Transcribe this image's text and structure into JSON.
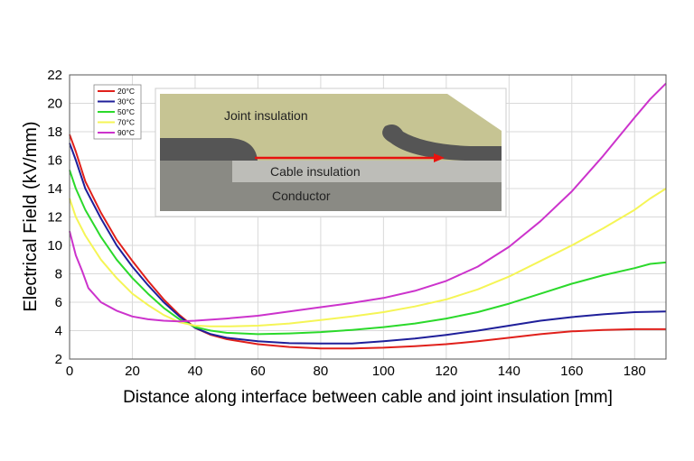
{
  "chart_data": {
    "type": "line",
    "title": "",
    "xlabel": "Distance along interface between cable and joint insulation [mm]",
    "ylabel": "Electrical Field (kV/mm)",
    "xlim": [
      0,
      190
    ],
    "ylim": [
      2,
      22
    ],
    "xticks": [
      "0",
      "20",
      "40",
      "60",
      "80",
      "100",
      "120",
      "140",
      "160",
      "180"
    ],
    "yticks": [
      "2",
      "4",
      "6",
      "8",
      "10",
      "12",
      "14",
      "16",
      "18",
      "20",
      "22"
    ],
    "grid": true,
    "legend_position": "top-left",
    "series": [
      {
        "name": "20°C",
        "color": "#e0201b",
        "points": [
          [
            0,
            17.8
          ],
          [
            2,
            16.6
          ],
          [
            5,
            14.5
          ],
          [
            10,
            12.3
          ],
          [
            15,
            10.4
          ],
          [
            20,
            8.9
          ],
          [
            25,
            7.5
          ],
          [
            30,
            6.2
          ],
          [
            35,
            5.1
          ],
          [
            40,
            4.2
          ],
          [
            45,
            3.7
          ],
          [
            50,
            3.4
          ],
          [
            60,
            3.05
          ],
          [
            70,
            2.85
          ],
          [
            80,
            2.75
          ],
          [
            90,
            2.75
          ],
          [
            100,
            2.8
          ],
          [
            110,
            2.9
          ],
          [
            120,
            3.05
          ],
          [
            130,
            3.25
          ],
          [
            140,
            3.5
          ],
          [
            150,
            3.75
          ],
          [
            160,
            3.95
          ],
          [
            170,
            4.05
          ],
          [
            180,
            4.1
          ],
          [
            190,
            4.1
          ]
        ]
      },
      {
        "name": "30°C",
        "color": "#1f1f9a",
        "points": [
          [
            0,
            17.2
          ],
          [
            2,
            16.0
          ],
          [
            5,
            14.0
          ],
          [
            10,
            11.9
          ],
          [
            15,
            10.0
          ],
          [
            20,
            8.5
          ],
          [
            25,
            7.2
          ],
          [
            30,
            6.0
          ],
          [
            35,
            5.0
          ],
          [
            40,
            4.2
          ],
          [
            45,
            3.75
          ],
          [
            50,
            3.5
          ],
          [
            60,
            3.25
          ],
          [
            70,
            3.12
          ],
          [
            80,
            3.1
          ],
          [
            90,
            3.1
          ],
          [
            100,
            3.25
          ],
          [
            110,
            3.45
          ],
          [
            120,
            3.7
          ],
          [
            130,
            4.0
          ],
          [
            140,
            4.35
          ],
          [
            150,
            4.7
          ],
          [
            160,
            4.95
          ],
          [
            170,
            5.15
          ],
          [
            180,
            5.3
          ],
          [
            190,
            5.35
          ]
        ]
      },
      {
        "name": "50°C",
        "color": "#2bd92b",
        "points": [
          [
            0,
            15.3
          ],
          [
            2,
            14.0
          ],
          [
            5,
            12.5
          ],
          [
            10,
            10.6
          ],
          [
            15,
            9.0
          ],
          [
            20,
            7.7
          ],
          [
            25,
            6.6
          ],
          [
            30,
            5.6
          ],
          [
            35,
            4.8
          ],
          [
            40,
            4.25
          ],
          [
            45,
            4.0
          ],
          [
            50,
            3.85
          ],
          [
            60,
            3.75
          ],
          [
            70,
            3.8
          ],
          [
            80,
            3.9
          ],
          [
            90,
            4.05
          ],
          [
            100,
            4.25
          ],
          [
            110,
            4.5
          ],
          [
            120,
            4.85
          ],
          [
            130,
            5.3
          ],
          [
            140,
            5.9
          ],
          [
            150,
            6.6
          ],
          [
            160,
            7.3
          ],
          [
            170,
            7.9
          ],
          [
            180,
            8.4
          ],
          [
            185,
            8.7
          ],
          [
            190,
            8.8
          ]
        ]
      },
      {
        "name": "70°C",
        "color": "#f5f556",
        "points": [
          [
            0,
            13.3
          ],
          [
            2,
            12.0
          ],
          [
            5,
            10.7
          ],
          [
            10,
            9.0
          ],
          [
            15,
            7.7
          ],
          [
            20,
            6.6
          ],
          [
            25,
            5.8
          ],
          [
            30,
            5.1
          ],
          [
            35,
            4.6
          ],
          [
            40,
            4.35
          ],
          [
            45,
            4.3
          ],
          [
            50,
            4.3
          ],
          [
            60,
            4.35
          ],
          [
            70,
            4.5
          ],
          [
            80,
            4.75
          ],
          [
            90,
            5.0
          ],
          [
            100,
            5.3
          ],
          [
            110,
            5.7
          ],
          [
            120,
            6.2
          ],
          [
            130,
            6.9
          ],
          [
            140,
            7.8
          ],
          [
            150,
            8.9
          ],
          [
            160,
            10.0
          ],
          [
            170,
            11.2
          ],
          [
            180,
            12.5
          ],
          [
            185,
            13.3
          ],
          [
            190,
            14.0
          ]
        ]
      },
      {
        "name": "90°C",
        "color": "#cc33cc",
        "points": [
          [
            0,
            11.0
          ],
          [
            2,
            9.3
          ],
          [
            4,
            8.2
          ],
          [
            6,
            7.0
          ],
          [
            10,
            6.0
          ],
          [
            15,
            5.4
          ],
          [
            20,
            5.0
          ],
          [
            25,
            4.8
          ],
          [
            30,
            4.7
          ],
          [
            35,
            4.65
          ],
          [
            40,
            4.7
          ],
          [
            50,
            4.85
          ],
          [
            60,
            5.05
          ],
          [
            70,
            5.35
          ],
          [
            80,
            5.65
          ],
          [
            90,
            5.95
          ],
          [
            100,
            6.3
          ],
          [
            110,
            6.8
          ],
          [
            120,
            7.5
          ],
          [
            130,
            8.5
          ],
          [
            140,
            9.9
          ],
          [
            150,
            11.7
          ],
          [
            160,
            13.8
          ],
          [
            170,
            16.3
          ],
          [
            180,
            19.0
          ],
          [
            185,
            20.3
          ],
          [
            190,
            21.4
          ]
        ]
      }
    ]
  },
  "inset": {
    "label_joint": "Joint insulation",
    "label_cable": "Cable insulation",
    "label_conductor": "Conductor",
    "color_joint": "#c6c493",
    "color_semicon": "#555555",
    "color_cable": "#bdbdb8",
    "color_conductor": "#8a8a84",
    "color_arrow": "#e8120e"
  }
}
